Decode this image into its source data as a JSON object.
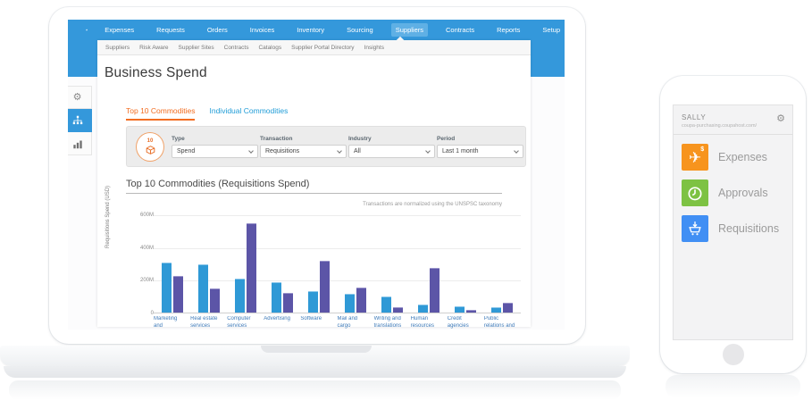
{
  "colors": {
    "nav_blue": "#3498DB",
    "nav_active_bg": "#5FB0E5",
    "tab_orange": "#F26D21",
    "link_blue": "#1F9CD7",
    "bar_blue": "#2F99D6",
    "bar_purple": "#5C55A7",
    "xlabel_blue": "#3C79B8",
    "expenses_orange": "#F7941E",
    "approvals_green": "#7DC243",
    "requisitions_blue": "#418FF4"
  },
  "nav": {
    "home_icon": "home-icon",
    "items": [
      "Expenses",
      "Requests",
      "Orders",
      "Invoices",
      "Inventory",
      "Sourcing",
      "Suppliers",
      "Contracts",
      "Reports",
      "Setup"
    ],
    "active": "Suppliers"
  },
  "subnav": {
    "items": [
      "Suppliers",
      "Risk Aware",
      "Supplier Sites",
      "Contracts",
      "Catalogs",
      "Supplier Portal Directory",
      "Insights"
    ]
  },
  "sidebar": {
    "items": [
      {
        "icon": "gear-icon",
        "active": false
      },
      {
        "icon": "org-chart-icon",
        "active": true
      },
      {
        "icon": "bar-chart-icon",
        "active": false
      }
    ]
  },
  "page": {
    "title": "Business Spend"
  },
  "tabs": [
    {
      "label": "Top 10 Commodities",
      "active": true
    },
    {
      "label": "Individual Commodities",
      "active": false
    }
  ],
  "filters": {
    "badge_number": "10",
    "badge_icon": "package-box-icon",
    "fields": [
      {
        "label": "Type",
        "value": "Spend"
      },
      {
        "label": "Transaction",
        "value": "Requisitions"
      },
      {
        "label": "Industry",
        "value": "All"
      },
      {
        "label": "Period",
        "value": "Last 1 month"
      }
    ]
  },
  "chart_data": {
    "type": "bar",
    "title": "Top 10 Commodities (Requisitions Spend)",
    "note": "Transactions are normalized using the UNSPSC taxonomy",
    "ylabel": "Requisitions Spend (USD)",
    "xlabel": "",
    "ylim": [
      0,
      600
    ],
    "ytick_labels": [
      "0",
      "200M",
      "400M",
      "600M"
    ],
    "grid": true,
    "legend": "none",
    "categories": [
      "Marketing and distribution",
      "Real estate services",
      "Computer services",
      "Advertising",
      "Software",
      "Mail and cargo transport",
      "Writing and translations",
      "Human resources services",
      "Credit agencies",
      "Public relations and professional communicati"
    ],
    "series": [
      {
        "name": "blue",
        "values": [
          305,
          297,
          205,
          185,
          132,
          112,
          97,
          50,
          40,
          35
        ]
      },
      {
        "name": "purple",
        "values": [
          222,
          148,
          545,
          122,
          317,
          152,
          33,
          272,
          18,
          60
        ]
      }
    ]
  },
  "phone": {
    "user": "SALLY",
    "url": "coupa-purchasing.coupahost.com/",
    "gear_icon": "gear-icon",
    "menu": [
      {
        "label": "Expenses",
        "icon": "airplane-expense-icon",
        "color_key": "expenses_orange"
      },
      {
        "label": "Approvals",
        "icon": "clock-icon",
        "color_key": "approvals_green"
      },
      {
        "label": "Requisitions",
        "icon": "cart-download-icon",
        "color_key": "requisitions_blue"
      }
    ]
  }
}
